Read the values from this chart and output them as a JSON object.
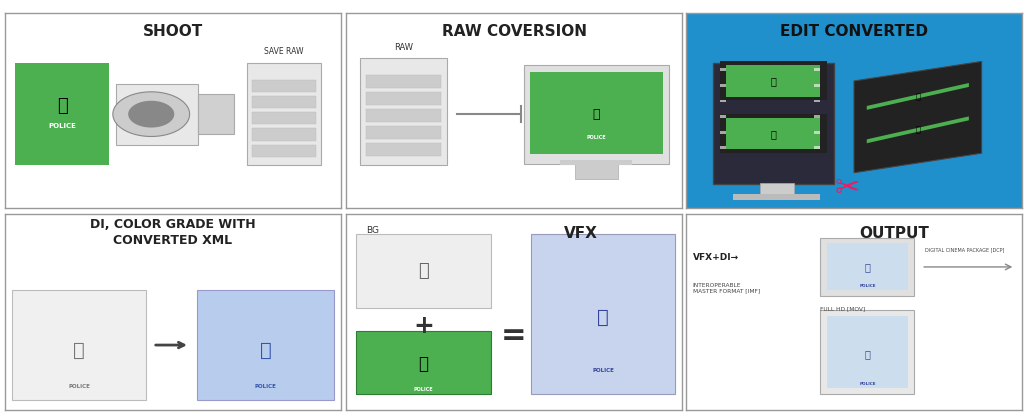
{
  "panels": [
    {
      "title": "SHOOT",
      "bg": "#ffffff",
      "title_color": "#222222"
    },
    {
      "title": "RAW COVERSION",
      "bg": "#ffffff",
      "title_color": "#222222"
    },
    {
      "title": "EDIT CONVERTED",
      "bg": "#2090cc",
      "title_color": "#111111"
    },
    {
      "title": "DI, COLOR GRADE WITH\nCONVERTED XML",
      "bg": "#ffffff",
      "title_color": "#222222"
    },
    {
      "title": "VFX",
      "bg": "#ffffff",
      "title_color": "#222222"
    },
    {
      "title": "OUTPUT",
      "bg": "#ffffff",
      "title_color": "#222222"
    }
  ],
  "green_color": "#4caf50",
  "blue_panel_color": "#2090cc",
  "border_color": "#aaaaaa",
  "label_save_raw": "SAVE RAW",
  "label_raw": "RAW",
  "label_bg": "BG",
  "label_vfx_di": "VFX+DI→",
  "label_imf": "INTEROPERABLE\nMASTER FORMAT [IMF]",
  "label_mov": "FULL HD [MOV]",
  "label_dcp": "DIGITAL CINEMA PACKAGE [DCP]",
  "label_police": "POLICE",
  "scissors_color": "#e91e63",
  "plus_color": "#333333",
  "arrow_color": "#666666"
}
